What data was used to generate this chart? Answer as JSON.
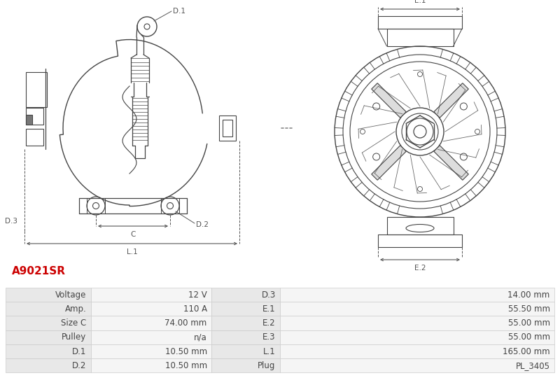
{
  "title": "A9021SR",
  "title_color": "#cc0000",
  "bg_color": "#ffffff",
  "table_border_color": "#cccccc",
  "table_data": [
    [
      "Voltage",
      "12 V",
      "D.3",
      "14.00 mm"
    ],
    [
      "Amp.",
      "110 A",
      "E.1",
      "55.50 mm"
    ],
    [
      "Size C",
      "74.00 mm",
      "E.2",
      "55.00 mm"
    ],
    [
      "Pulley",
      "n/a",
      "E.3",
      "55.00 mm"
    ],
    [
      "D.1",
      "10.50 mm",
      "L.1",
      "165.00 mm"
    ],
    [
      "D.2",
      "10.50 mm",
      "Plug",
      "PL_3405"
    ]
  ],
  "drawing_line_color": "#444444",
  "label_color": "#555555",
  "dim_color": "#555555",
  "font_size_table": 8.5,
  "font_size_label": 7.5,
  "font_size_title": 11
}
